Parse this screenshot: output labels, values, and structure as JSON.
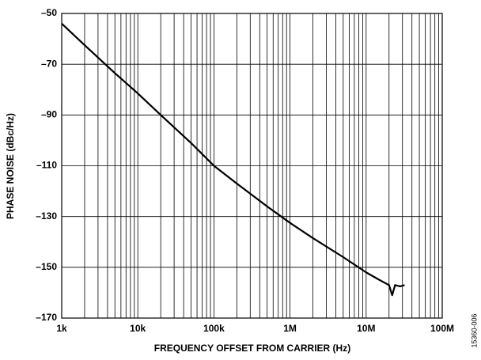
{
  "chart_data": {
    "type": "line",
    "xlabel": "FREQUENCY OFFSET FROM CARRIER (Hz)",
    "ylabel": "PHASE NOISE (dBc/Hz)",
    "note": "15360-006",
    "xscale": "log",
    "grid": true,
    "x": [
      1000,
      2000,
      5000,
      10000,
      20000,
      50000,
      100000,
      200000,
      500000,
      1000000,
      2000000,
      5000000,
      10000000,
      15000000,
      20000000,
      22000000,
      24000000,
      28000000,
      32000000
    ],
    "series": [
      {
        "color": "#000000",
        "values": [
          -54,
          -62.5,
          -73.5,
          -81.5,
          -90,
          -101,
          -110,
          -117,
          -126,
          -132.5,
          -138.5,
          -146,
          -152,
          -155,
          -157,
          -161,
          -157,
          -157.5,
          -157
        ]
      }
    ],
    "xlim": [
      1000,
      100000000
    ],
    "xticks": [
      {
        "value": 1000,
        "label": "1k"
      },
      {
        "value": 10000,
        "label": "10k"
      },
      {
        "value": 100000,
        "label": "100k"
      },
      {
        "value": 1000000,
        "label": "1M"
      },
      {
        "value": 10000000,
        "label": "10M"
      },
      {
        "value": 100000000,
        "label": "100M"
      }
    ],
    "xminorticks": [
      2000,
      3000,
      4000,
      5000,
      6000,
      7000,
      8000,
      9000,
      20000,
      30000,
      40000,
      50000,
      60000,
      70000,
      80000,
      90000,
      200000,
      300000,
      400000,
      500000,
      600000,
      700000,
      800000,
      900000,
      2000000,
      3000000,
      4000000,
      5000000,
      6000000,
      7000000,
      8000000,
      9000000,
      20000000,
      30000000,
      40000000,
      50000000,
      60000000,
      70000000,
      80000000,
      90000000
    ],
    "ylim": [
      -170,
      -50
    ],
    "yticks": [
      {
        "value": -170,
        "label": "–170"
      },
      {
        "value": -150,
        "label": "–150"
      },
      {
        "value": -130,
        "label": "–130"
      },
      {
        "value": -110,
        "label": "–110"
      },
      {
        "value": -90,
        "label": "–90"
      },
      {
        "value": -70,
        "label": "–70"
      },
      {
        "value": -50,
        "label": "–50"
      }
    ]
  }
}
